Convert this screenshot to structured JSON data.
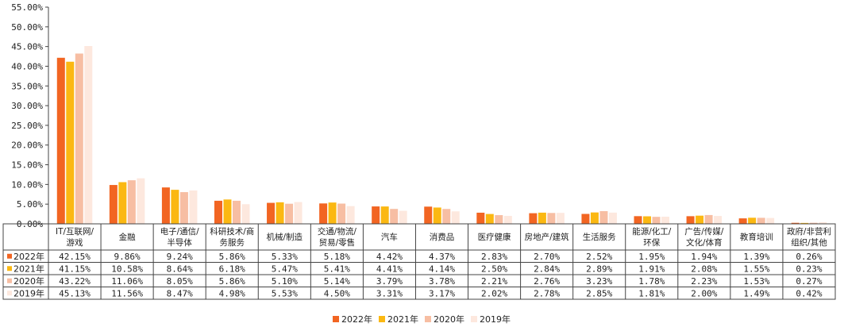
{
  "chart_data": {
    "type": "bar",
    "categories": [
      [
        "IT/互联网/",
        "游戏"
      ],
      [
        "金融"
      ],
      [
        "电子/通信/",
        "半导体"
      ],
      [
        "科研技术/商",
        "务服务"
      ],
      [
        "机械/制造"
      ],
      [
        "交通/物流/",
        "贸易/零售"
      ],
      [
        "汽车"
      ],
      [
        "消费品"
      ],
      [
        "医疗健康"
      ],
      [
        "房地产/建筑"
      ],
      [
        "生活服务"
      ],
      [
        "能源/化工/",
        "环保"
      ],
      [
        "广告/传媒/",
        "文化/体育"
      ],
      [
        "教育培训"
      ],
      [
        "政府/非营利",
        "组织/其他"
      ]
    ],
    "series": [
      {
        "name": "2022年",
        "color": "#f26522",
        "values": [
          42.15,
          9.86,
          9.24,
          5.86,
          5.33,
          5.18,
          4.42,
          4.37,
          2.83,
          2.7,
          2.52,
          1.95,
          1.94,
          1.39,
          0.26
        ],
        "labels": [
          "42.15%",
          "9.86%",
          "9.24%",
          "5.86%",
          "5.33%",
          "5.18%",
          "4.42%",
          "4.37%",
          "2.83%",
          "2.70%",
          "2.52%",
          "1.95%",
          "1.94%",
          "1.39%",
          "0.26%"
        ]
      },
      {
        "name": "2021年",
        "color": "#fbb812",
        "values": [
          41.15,
          10.58,
          8.64,
          6.18,
          5.47,
          5.41,
          4.41,
          4.14,
          2.5,
          2.84,
          2.89,
          1.91,
          2.08,
          1.55,
          0.23
        ],
        "labels": [
          "41.15%",
          "10.58%",
          "8.64%",
          "6.18%",
          "5.47%",
          "5.41%",
          "4.41%",
          "4.14%",
          "2.50%",
          "2.84%",
          "2.89%",
          "1.91%",
          "2.08%",
          "1.55%",
          "0.23%"
        ]
      },
      {
        "name": "2020年",
        "color": "#f7bea3",
        "values": [
          43.22,
          11.06,
          8.05,
          5.86,
          5.1,
          5.14,
          3.79,
          3.78,
          2.21,
          2.76,
          3.23,
          1.78,
          2.23,
          1.53,
          0.27
        ],
        "labels": [
          "43.22%",
          "11.06%",
          "8.05%",
          "5.86%",
          "5.10%",
          "5.14%",
          "3.79%",
          "3.78%",
          "2.21%",
          "2.76%",
          "3.23%",
          "1.78%",
          "2.23%",
          "1.53%",
          "0.27%"
        ]
      },
      {
        "name": "2019年",
        "color": "#fde8de",
        "values": [
          45.13,
          11.56,
          8.47,
          4.98,
          5.53,
          4.5,
          3.31,
          3.17,
          2.02,
          2.78,
          2.85,
          1.81,
          2.0,
          1.49,
          0.42
        ],
        "labels": [
          "45.13%",
          "11.56%",
          "8.47%",
          "4.98%",
          "5.53%",
          "4.50%",
          "3.31%",
          "3.17%",
          "2.02%",
          "2.78%",
          "2.85%",
          "1.81%",
          "2.00%",
          "1.49%",
          "0.42%"
        ]
      }
    ],
    "yticks": [
      "0.00%",
      "5.00%",
      "10.00%",
      "15.00%",
      "20.00%",
      "25.00%",
      "30.00%",
      "35.00%",
      "40.00%",
      "45.00%",
      "50.00%",
      "55.00%"
    ],
    "ylim": [
      0,
      55
    ],
    "grid": false,
    "legend_position": "bottom",
    "data_table": true
  }
}
